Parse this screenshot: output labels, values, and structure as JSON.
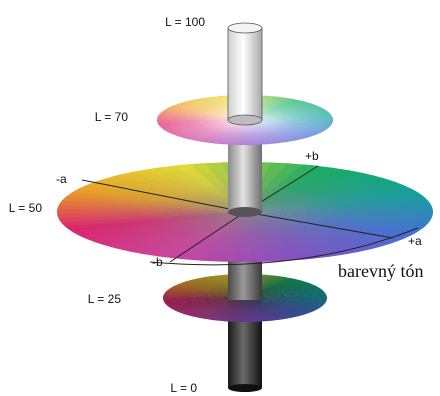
{
  "diagram": {
    "levels": [
      {
        "id": "l100",
        "label": "L = 100"
      },
      {
        "id": "l70",
        "label": "L = 70"
      },
      {
        "id": "l50",
        "label": "L = 50"
      },
      {
        "id": "l25",
        "label": "L = 25"
      },
      {
        "id": "l0",
        "label": "L = 0"
      }
    ],
    "axes": {
      "plus_b": "+b",
      "minus_a": "-a",
      "plus_a": "+a",
      "minus_b": "-b"
    },
    "hue_label": "barevný tón",
    "colors": {
      "red": "#e0206a",
      "orange": "#f0a020",
      "yellow": "#e8e030",
      "green": "#10b060",
      "teal": "#10a0a0",
      "blue": "#4070d8",
      "violet": "#8050c8",
      "magenta": "#d040a0"
    }
  }
}
